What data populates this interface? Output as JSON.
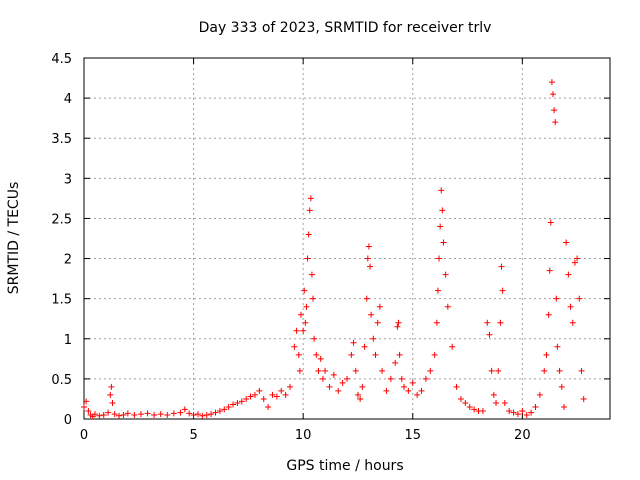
{
  "chart_data": {
    "type": "scatter",
    "title": "Day 333 of 2023, SRMTID for receiver trlv",
    "xlabel": "GPS time / hours",
    "ylabel": "SRMTID / TECUs",
    "xlim": [
      0,
      24
    ],
    "ylim": [
      0,
      4.5
    ],
    "x_ticks": [
      0,
      5,
      10,
      15,
      20
    ],
    "x_tick_labels": [
      "0",
      "5",
      "10",
      "15",
      "20"
    ],
    "y_ticks": [
      0,
      0.5,
      1,
      1.5,
      2,
      2.5,
      3,
      3.5,
      4,
      4.5
    ],
    "y_tick_labels": [
      "0",
      "0.5",
      "1",
      "1.5",
      "2",
      "2.5",
      "3",
      "3.5",
      "4",
      "4.5"
    ],
    "grid": true,
    "marker": "+",
    "series": [
      {
        "name": "SRMTID",
        "color": "#ff0000",
        "x": [
          0.0,
          0.1,
          0.2,
          0.3,
          0.4,
          0.5,
          0.7,
          0.9,
          1.1,
          1.2,
          1.25,
          1.3,
          1.4,
          1.6,
          1.8,
          2.0,
          2.3,
          2.6,
          2.9,
          3.2,
          3.5,
          3.8,
          4.1,
          4.4,
          4.6,
          4.8,
          5.0,
          5.2,
          5.4,
          5.6,
          5.8,
          6.0,
          6.2,
          6.4,
          6.6,
          6.8,
          7.0,
          7.2,
          7.4,
          7.6,
          7.8,
          8.0,
          8.2,
          8.4,
          8.6,
          8.8,
          9.0,
          9.2,
          9.4,
          9.6,
          9.7,
          9.8,
          9.85,
          9.9,
          10.0,
          10.05,
          10.1,
          10.15,
          10.2,
          10.25,
          10.3,
          10.35,
          10.4,
          10.45,
          10.5,
          10.6,
          10.7,
          10.8,
          10.9,
          11.0,
          11.2,
          11.4,
          11.6,
          11.8,
          12.0,
          12.2,
          12.3,
          12.4,
          12.5,
          12.6,
          12.7,
          12.8,
          12.9,
          12.95,
          13.0,
          13.05,
          13.1,
          13.2,
          13.3,
          13.4,
          13.5,
          13.6,
          13.8,
          14.0,
          14.2,
          14.3,
          14.35,
          14.4,
          14.5,
          14.6,
          14.8,
          15.0,
          15.2,
          15.4,
          15.6,
          15.8,
          16.0,
          16.1,
          16.15,
          16.2,
          16.25,
          16.3,
          16.35,
          16.4,
          16.5,
          16.6,
          16.8,
          17.0,
          17.2,
          17.4,
          17.6,
          17.8,
          18.0,
          18.2,
          18.4,
          18.5,
          18.6,
          18.7,
          18.8,
          18.9,
          19.0,
          19.05,
          19.1,
          19.2,
          19.4,
          19.6,
          19.8,
          20.0,
          20.2,
          20.4,
          20.6,
          20.8,
          21.0,
          21.1,
          21.2,
          21.25,
          21.3,
          21.35,
          21.4,
          21.45,
          21.5,
          21.55,
          21.6,
          21.7,
          21.8,
          21.9,
          22.0,
          22.1,
          22.2,
          22.3,
          22.4,
          22.5,
          22.6,
          22.7,
          22.8
        ],
        "y": [
          0.15,
          0.22,
          0.1,
          0.05,
          0.03,
          0.06,
          0.04,
          0.05,
          0.08,
          0.3,
          0.4,
          0.2,
          0.06,
          0.04,
          0.05,
          0.07,
          0.05,
          0.06,
          0.07,
          0.05,
          0.06,
          0.05,
          0.07,
          0.08,
          0.12,
          0.07,
          0.05,
          0.06,
          0.04,
          0.05,
          0.06,
          0.08,
          0.1,
          0.12,
          0.15,
          0.18,
          0.2,
          0.22,
          0.25,
          0.28,
          0.3,
          0.35,
          0.25,
          0.15,
          0.3,
          0.28,
          0.35,
          0.3,
          0.4,
          0.9,
          1.1,
          0.8,
          0.6,
          1.3,
          1.1,
          1.6,
          1.2,
          1.4,
          2.0,
          2.3,
          2.6,
          2.75,
          1.8,
          1.5,
          1.0,
          0.8,
          0.6,
          0.75,
          0.5,
          0.6,
          0.4,
          0.55,
          0.35,
          0.45,
          0.5,
          0.8,
          0.95,
          0.6,
          0.3,
          0.25,
          0.4,
          0.9,
          1.5,
          2.0,
          2.15,
          1.9,
          1.3,
          1.0,
          0.8,
          1.2,
          1.4,
          0.6,
          0.35,
          0.5,
          0.7,
          1.15,
          1.2,
          0.8,
          0.5,
          0.4,
          0.35,
          0.45,
          0.3,
          0.35,
          0.5,
          0.6,
          0.8,
          1.2,
          1.6,
          2.0,
          2.4,
          2.85,
          2.6,
          2.2,
          1.8,
          1.4,
          0.9,
          0.4,
          0.25,
          0.2,
          0.15,
          0.12,
          0.1,
          0.1,
          1.2,
          1.05,
          0.6,
          0.3,
          0.2,
          0.6,
          1.2,
          1.9,
          1.6,
          0.2,
          0.1,
          0.08,
          0.06,
          0.1,
          0.05,
          0.08,
          0.15,
          0.3,
          0.6,
          0.8,
          1.3,
          1.85,
          2.45,
          4.2,
          4.05,
          3.85,
          3.7,
          1.5,
          0.9,
          0.6,
          0.4,
          0.15,
          2.2,
          1.8,
          1.4,
          1.2,
          1.95,
          2.0,
          1.5,
          0.6,
          0.25
        ]
      }
    ]
  }
}
